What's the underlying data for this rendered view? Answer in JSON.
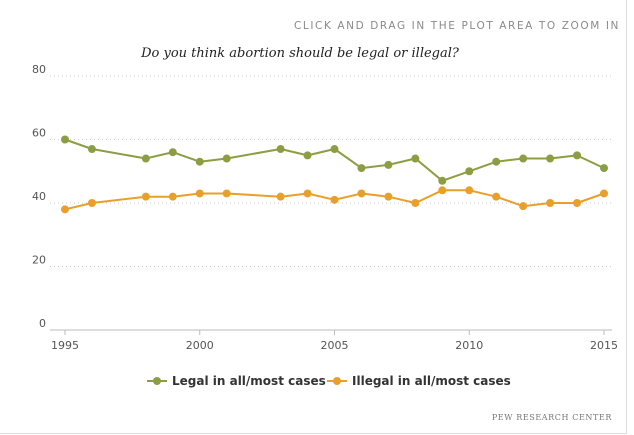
{
  "header": {
    "zoom_hint": "CLICK AND DRAG IN THE PLOT AREA TO ZOOM IN"
  },
  "footer": {
    "credit": "PEW RESEARCH CENTER"
  },
  "colors": {
    "legal": "#8c9e43",
    "illegal": "#e8a02a",
    "grid": "#cccccc",
    "axis_text": "#555555"
  },
  "chart_data": {
    "type": "line",
    "title": "Do you think abortion should be legal or illegal?",
    "xlabel": "",
    "ylabel": "",
    "xlim": [
      1995,
      2015
    ],
    "ylim": [
      0,
      80
    ],
    "x_ticks": [
      1995,
      2000,
      2005,
      2010,
      2015
    ],
    "y_ticks": [
      0,
      20,
      40,
      60,
      80
    ],
    "grid": "horizontal dotted",
    "legend_position": "bottom-center",
    "series": [
      {
        "name": "Legal in all/most cases",
        "color": "#8c9e43",
        "x": [
          1995,
          1996,
          1998,
          1999,
          2000,
          2001,
          2003,
          2004,
          2005,
          2006,
          2007,
          2008,
          2009,
          2010,
          2011,
          2012,
          2013,
          2014,
          2015
        ],
        "values": [
          60,
          57,
          54,
          56,
          53,
          54,
          57,
          55,
          57,
          51,
          52,
          54,
          47,
          50,
          53,
          54,
          54,
          55,
          51
        ]
      },
      {
        "name": "Illegal in all/most cases",
        "color": "#e8a02a",
        "x": [
          1995,
          1996,
          1998,
          1999,
          2000,
          2001,
          2003,
          2004,
          2005,
          2006,
          2007,
          2008,
          2009,
          2010,
          2011,
          2012,
          2013,
          2014,
          2015
        ],
        "values": [
          38,
          40,
          42,
          42,
          43,
          43,
          42,
          43,
          41,
          43,
          42,
          40,
          44,
          44,
          42,
          39,
          40,
          40,
          43
        ]
      }
    ]
  }
}
